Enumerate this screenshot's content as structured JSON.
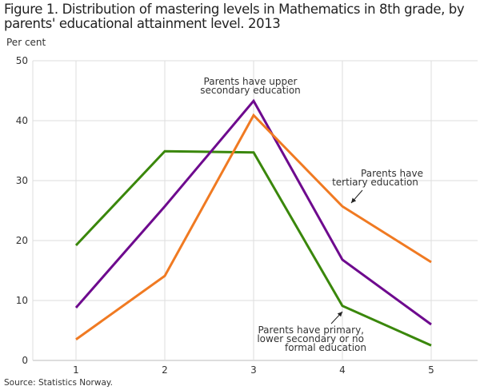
{
  "chart_data": {
    "type": "line",
    "title": "Figure 1. Distribution of mastering levels in Mathematics in 8th grade, by parents' educational attainment level.  2013",
    "title_lines": [
      "Figure 1. Distribution of mastering levels in Mathematics in 8th grade, by",
      "parents' educational attainment level.  2013"
    ],
    "ylabel": "Per cent",
    "xlabel": "",
    "x": [
      1,
      2,
      3,
      4,
      5
    ],
    "x_tick_labels": [
      "1",
      "2",
      "3",
      "4",
      "5"
    ],
    "ylim": [
      0,
      50
    ],
    "y_ticks": [
      0,
      10,
      20,
      30,
      40,
      50
    ],
    "grid": true,
    "series": [
      {
        "name": "Parents have primary, lower secondary or no formal education",
        "color": "#3a870b",
        "values": [
          19.2,
          34.9,
          34.7,
          9.1,
          2.5
        ]
      },
      {
        "name": "Parents have upper secondary education",
        "color": "#6e0a8e",
        "values": [
          8.8,
          25.7,
          43.3,
          16.8,
          6.0
        ]
      },
      {
        "name": "Parents have tertiary education",
        "color": "#f07a22",
        "values": [
          3.5,
          14.1,
          40.9,
          25.7,
          16.4
        ]
      }
    ],
    "annotations": [
      {
        "lines": [
          "Parents have upper",
          "secondary education"
        ],
        "series": 1
      },
      {
        "lines": [
          "Parents have",
          "tertiary education"
        ],
        "series": 2
      },
      {
        "lines": [
          "Parents have primary,",
          "lower secondary or no",
          "formal education"
        ],
        "series": 0
      }
    ],
    "source": "Source: Statistics Norway."
  }
}
